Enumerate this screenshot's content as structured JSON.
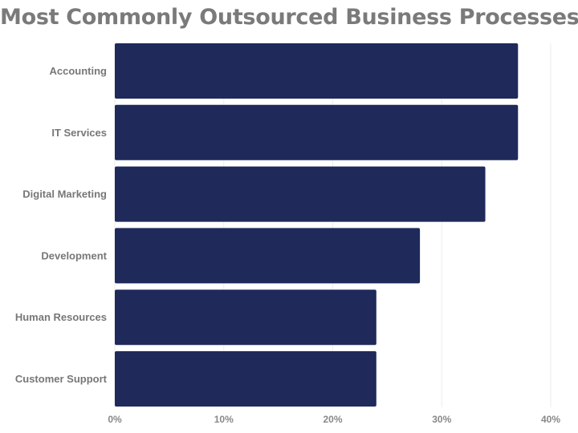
{
  "chart_data": {
    "type": "bar",
    "orientation": "horizontal",
    "title": "Most Commonly Outsourced Business Processes",
    "categories": [
      "Accounting",
      "IT Services",
      "Digital Marketing",
      "Development",
      "Human Resources",
      "Customer Support"
    ],
    "values": [
      37,
      37,
      34,
      28,
      24,
      24
    ],
    "x_ticks": [
      "0%",
      "10%",
      "20%",
      "30%",
      "40%"
    ],
    "xlim": [
      0,
      40
    ],
    "xlabel": "",
    "ylabel": "",
    "grid": true,
    "bar_color": "#1f2a5b"
  }
}
